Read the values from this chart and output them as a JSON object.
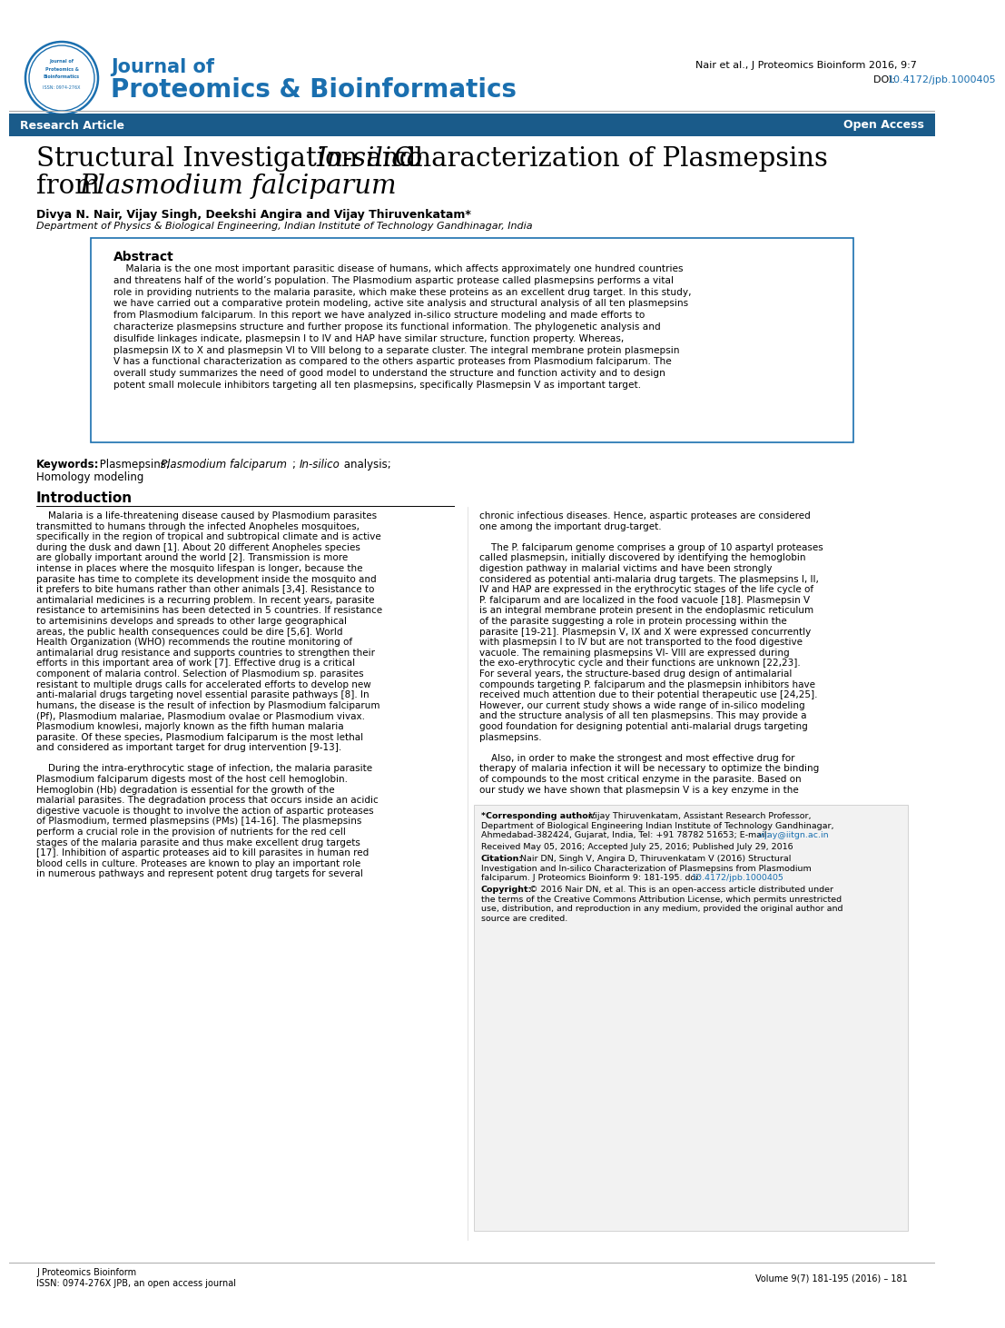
{
  "journal_name_line1": "Journal of",
  "journal_name_line2": "Proteomics & Bioinformatics",
  "header_right_line1": "Nair et al., J Proteomics Bioinform 2016, 9:7",
  "doi_text": "DOI: ",
  "doi_link": "10.4172/jpb.1000405",
  "banner_text_left": "Research Article",
  "banner_text_right": "Open Access",
  "banner_color": "#1a5b8a",
  "journal_blue": "#1a6faf",
  "authors": "Divya N. Nair, Vijay Singh, Deekshi Angira and Vijay Thiruvenkatam*",
  "affiliation": "Department of Physics & Biological Engineering, Indian Institute of Technology Gandhinagar, India",
  "abstract_title": "Abstract",
  "keywords_bold": "Keywords:",
  "intro_title": "Introduction",
  "footnote_left1": "J Proteomics Bioinform",
  "footnote_left2": "ISSN: 0974-276X JPB, an open access journal",
  "footnote_right": "Volume 9(7) 181-195 (2016) – 181",
  "page_bg": "#ffffff",
  "text_color": "#000000",
  "abstract_border": "#1a6faf",
  "line_color": "#aaaaaa",
  "footnote_bg": "#f2f2f2",
  "footnote_border": "#cccccc"
}
